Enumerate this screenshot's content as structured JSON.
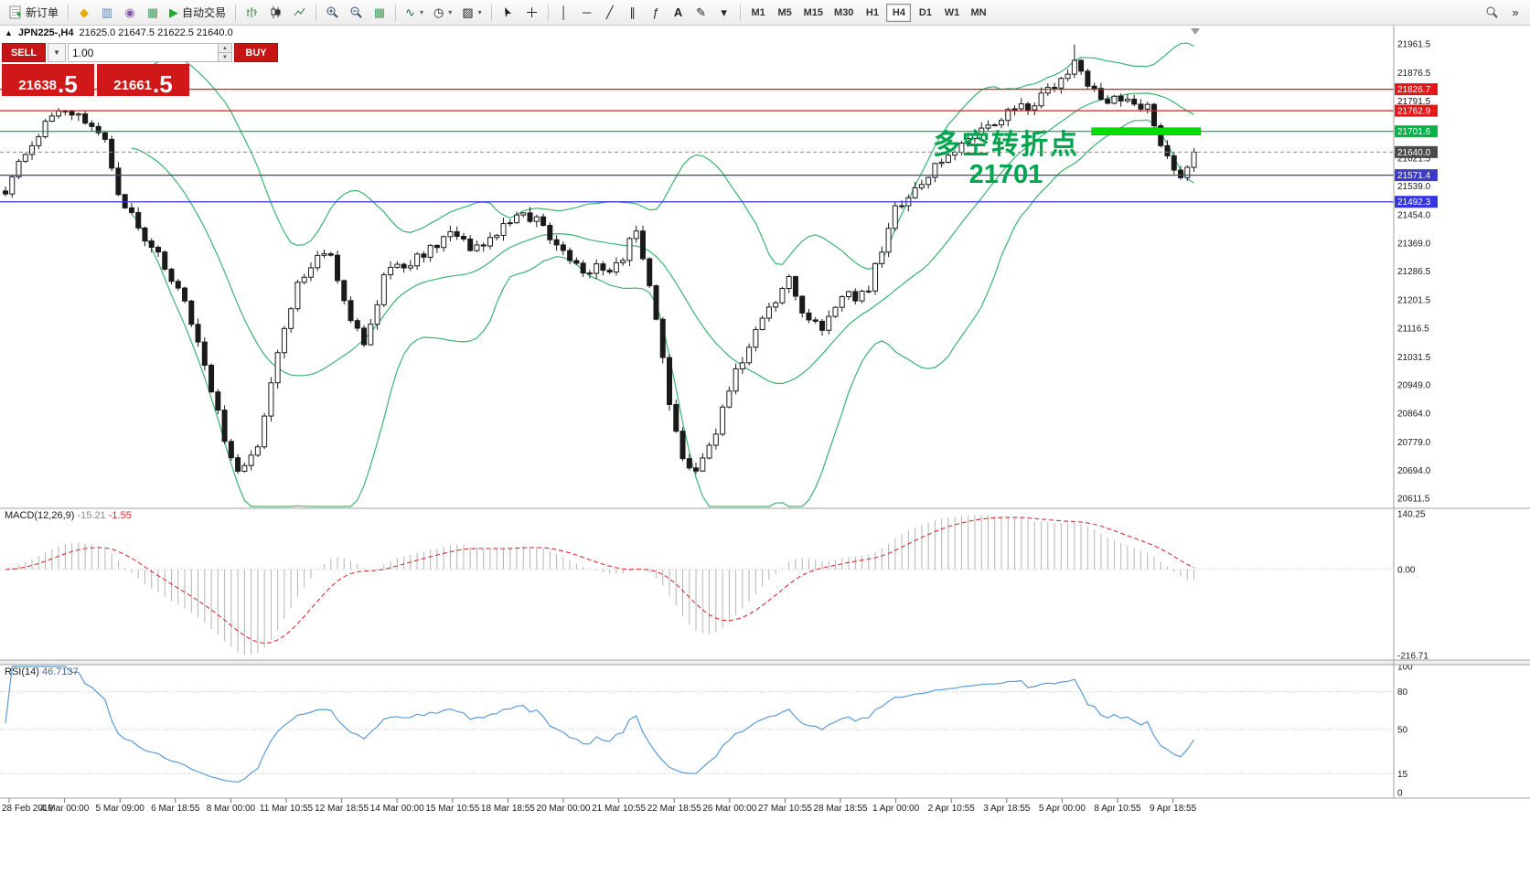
{
  "colors": {
    "toolbar_bg": "#f2f2f2",
    "candle_up": "#ffffff",
    "candle_down": "#1a1a1a",
    "candle_border": "#1a1a1a",
    "bollinger": "#3cb371",
    "macd_hist": "#b4b4b4",
    "macd_signal": "#d93030",
    "rsi_line": "#5b9bd5",
    "annotation_green": "#00a64f",
    "sell_buy_red": "#c51515"
  },
  "icons": {
    "collapse": "▲",
    "market_watch": "◆",
    "data_window": "▥",
    "navigator": "◉",
    "terminal": "▦",
    "autotrade_play": "▶",
    "grid": "▦",
    "indicators": "∿",
    "periods": "◷",
    "templates": "▨",
    "vline": "│",
    "hline": "─",
    "trendline": "╱",
    "channel": "∥",
    "fibonacci": "ƒ",
    "text_tool": "A",
    "label_tool": "✎",
    "shapes": "▾",
    "dropdown": "▼",
    "spin_up": "▲",
    "spin_down": "▼",
    "chevron": "»"
  },
  "toolbar": {
    "new_order": "新订单",
    "autotrade": "自动交易",
    "timeframes": [
      "M1",
      "M5",
      "M15",
      "M30",
      "H1",
      "H4",
      "D1",
      "W1",
      "MN"
    ],
    "active_timeframe": "H4"
  },
  "chart": {
    "symbol_title": "JPN225-,H4",
    "ohlc": "21625.0 21647.5 21622.5 21640.0",
    "one_click": {
      "sell_label": "SELL",
      "buy_label": "BUY",
      "volume": "1.00",
      "sell_main": "21638",
      "sell_pips": ".5",
      "buy_main": "21661",
      "buy_pips": ".5"
    },
    "annotation": {
      "line1": "多空转折点",
      "line2": "21701"
    }
  },
  "panels": {
    "macd": {
      "name": "MACD(12,26,9)",
      "value_main": "-15.21",
      "value_signal": "-1.55",
      "axis": [
        {
          "value": 140.25,
          "label": "140.25"
        },
        {
          "value": 0,
          "label": "0.00"
        },
        {
          "value": -216.71,
          "label": "-216.71"
        }
      ]
    },
    "rsi": {
      "name": "RSI(14)",
      "value": "46.7137",
      "axis": [
        {
          "value": 100,
          "label": "100"
        },
        {
          "value": 80,
          "label": "80"
        },
        {
          "value": 50,
          "label": "50"
        },
        {
          "value": 15,
          "label": "15"
        },
        {
          "value": 0,
          "label": "0"
        }
      ],
      "levels": [
        80,
        50,
        15
      ]
    }
  },
  "price_axis": {
    "ticks": [
      21961.5,
      21876.5,
      21791.5,
      21706.5,
      21621.5,
      21539.0,
      21454.0,
      21369.0,
      21286.5,
      21201.5,
      21116.5,
      21031.5,
      20949.0,
      20864.0,
      20779.0,
      20694.0,
      20611.5
    ],
    "badges": [
      {
        "price": 21826.7,
        "bg": "#e81717"
      },
      {
        "price": 21762.9,
        "bg": "#e81717"
      },
      {
        "price": 21701.6,
        "bg": "#00b44a"
      },
      {
        "price": 21640.0,
        "bg": "#4a4a4a"
      },
      {
        "price": 21571.4,
        "bg": "#3c3cc8"
      },
      {
        "price": 21492.3,
        "bg": "#3434e0"
      }
    ]
  },
  "time_axis": {
    "labels": [
      "28 Feb 2019",
      "4 Mar 00:00",
      "5 Mar 09:00",
      "6 Mar 18:55",
      "8 Mar 00:00",
      "11 Mar 10:55",
      "12 Mar 18:55",
      "14 Mar 00:00",
      "15 Mar 10:55",
      "18 Mar 18:55",
      "20 Mar 00:00",
      "21 Mar 10:55",
      "22 Mar 18:55",
      "26 Mar 00:00",
      "27 Mar 10:55",
      "28 Mar 18:55",
      "1 Apr 00:00",
      "2 Apr 10:55",
      "3 Apr 18:55",
      "5 Apr 00:00",
      "8 Apr 10:55",
      "9 Apr 18:55"
    ]
  },
  "chart_data": {
    "type": "candlestick",
    "symbol": "JPN225-",
    "timeframe": "H4",
    "candle_count": 180,
    "y_range": [
      20611.5,
      21961.5
    ],
    "last_ohlc": {
      "open": 21625.0,
      "high": 21647.5,
      "low": 21622.5,
      "close": 21640.0
    },
    "bid": 21638.5,
    "ask": 21661.5,
    "current_price": 21640.0,
    "close_path_anchors": [
      [
        0,
        21520
      ],
      [
        3,
        21640
      ],
      [
        6,
        21720
      ],
      [
        9,
        21780
      ],
      [
        12,
        21740
      ],
      [
        15,
        21690
      ],
      [
        17,
        21520
      ],
      [
        20,
        21420
      ],
      [
        24,
        21300
      ],
      [
        27,
        21190
      ],
      [
        30,
        21000
      ],
      [
        33,
        20790
      ],
      [
        35,
        20700
      ],
      [
        38,
        20780
      ],
      [
        41,
        21060
      ],
      [
        44,
        21240
      ],
      [
        47,
        21330
      ],
      [
        49,
        21330
      ],
      [
        52,
        21150
      ],
      [
        54,
        21060
      ],
      [
        57,
        21260
      ],
      [
        59,
        21300
      ],
      [
        63,
        21340
      ],
      [
        67,
        21390
      ],
      [
        71,
        21350
      ],
      [
        75,
        21430
      ],
      [
        78,
        21460
      ],
      [
        81,
        21420
      ],
      [
        84,
        21340
      ],
      [
        87,
        21290
      ],
      [
        92,
        21300
      ],
      [
        95,
        21400
      ],
      [
        98,
        21150
      ],
      [
        100,
        20900
      ],
      [
        102,
        20720
      ],
      [
        104,
        20690
      ],
      [
        106,
        20760
      ],
      [
        108,
        20870
      ],
      [
        110,
        21000
      ],
      [
        112,
        21060
      ],
      [
        115,
        21180
      ],
      [
        118,
        21260
      ],
      [
        120,
        21160
      ],
      [
        123,
        21120
      ],
      [
        126,
        21220
      ],
      [
        128,
        21200
      ],
      [
        130,
        21230
      ],
      [
        134,
        21480
      ],
      [
        138,
        21550
      ],
      [
        142,
        21630
      ],
      [
        146,
        21680
      ],
      [
        151,
        21760
      ],
      [
        155,
        21780
      ],
      [
        159,
        21870
      ],
      [
        161,
        21905
      ],
      [
        163,
        21830
      ],
      [
        166,
        21790
      ],
      [
        169,
        21800
      ],
      [
        172,
        21770
      ],
      [
        175,
        21620
      ],
      [
        177,
        21560
      ],
      [
        179,
        21640
      ]
    ],
    "bollinger": {
      "period": 20,
      "deviation": 2
    },
    "levels": [
      {
        "price": 21826.7,
        "color": "#e81717"
      },
      {
        "price": 21762.9,
        "color": "#e81717"
      },
      {
        "price": 21701.6,
        "color": "#00a050"
      },
      {
        "price": 21571.4,
        "color": "#3c3cc8"
      },
      {
        "price": 21492.3,
        "color": "#3434e0"
      }
    ],
    "highlight_bar": {
      "start_index": 164,
      "end_index": 180,
      "price": 21701.6,
      "color": "#00dd00"
    },
    "macd": {
      "fast": 12,
      "slow": 26,
      "signal": 9,
      "current": -15.21,
      "current_signal": -1.55,
      "axis_max": 140.25,
      "axis_min": -216.71
    },
    "rsi": {
      "period": 14,
      "current": 46.7137
    }
  }
}
